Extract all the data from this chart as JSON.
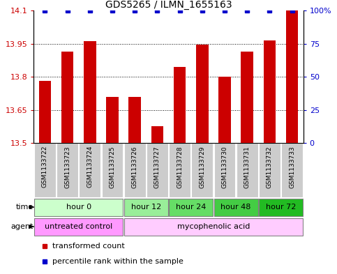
{
  "title": "GDS5265 / ILMN_1655163",
  "samples": [
    "GSM1133722",
    "GSM1133723",
    "GSM1133724",
    "GSM1133725",
    "GSM1133726",
    "GSM1133727",
    "GSM1133728",
    "GSM1133729",
    "GSM1133730",
    "GSM1133731",
    "GSM1133732",
    "GSM1133733"
  ],
  "transformed_count": [
    13.78,
    13.915,
    13.96,
    13.71,
    13.71,
    13.575,
    13.845,
    13.945,
    13.8,
    13.915,
    13.965,
    14.1
  ],
  "percentile_rank": [
    100,
    100,
    100,
    100,
    100,
    100,
    100,
    100,
    100,
    100,
    100,
    100
  ],
  "ylim_left": [
    13.5,
    14.1
  ],
  "ylim_right": [
    0,
    100
  ],
  "yticks_left": [
    13.5,
    13.65,
    13.8,
    13.95,
    14.1
  ],
  "yticks_right": [
    0,
    25,
    50,
    75,
    100
  ],
  "ytick_labels_left": [
    "13.5",
    "13.65",
    "13.8",
    "13.95",
    "14.1"
  ],
  "ytick_labels_right": [
    "0",
    "25",
    "50",
    "75",
    "100%"
  ],
  "bar_color": "#cc0000",
  "dot_color": "#0000cc",
  "time_groups": [
    {
      "label": "hour 0",
      "start": 0,
      "end": 3,
      "color": "#ccffcc"
    },
    {
      "label": "hour 12",
      "start": 4,
      "end": 5,
      "color": "#99ee99"
    },
    {
      "label": "hour 24",
      "start": 6,
      "end": 7,
      "color": "#66dd66"
    },
    {
      "label": "hour 48",
      "start": 8,
      "end": 9,
      "color": "#44cc44"
    },
    {
      "label": "hour 72",
      "start": 10,
      "end": 11,
      "color": "#22bb22"
    }
  ],
  "agent_groups": [
    {
      "label": "untreated control",
      "start": 0,
      "end": 3,
      "color": "#ff99ff"
    },
    {
      "label": "mycophenolic acid",
      "start": 4,
      "end": 11,
      "color": "#ffccff"
    }
  ],
  "legend_items": [
    {
      "label": "transformed count",
      "color": "#cc0000"
    },
    {
      "label": "percentile rank within the sample",
      "color": "#0000cc"
    }
  ],
  "bar_width": 0.55,
  "sample_bg_color": "#cccccc",
  "time_label": "time",
  "agent_label": "agent",
  "fig_width": 4.83,
  "fig_height": 3.93,
  "dpi": 100
}
